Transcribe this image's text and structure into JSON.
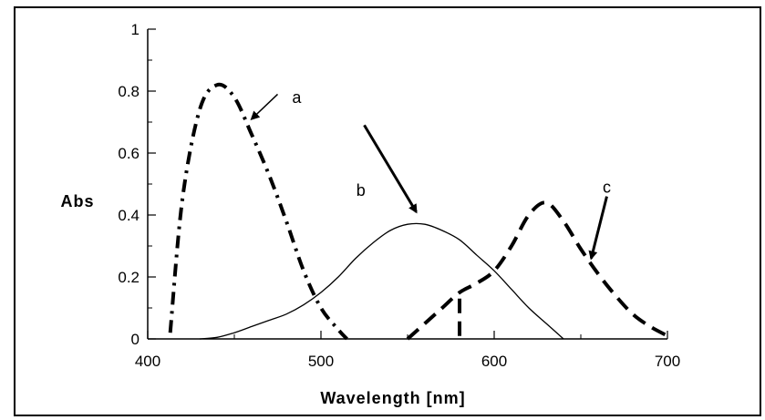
{
  "chart_data": {
    "type": "line",
    "xlabel": "Wavelength [nm]",
    "ylabel": "Abs",
    "xlim": [
      400,
      700
    ],
    "ylim": [
      0,
      1
    ],
    "x_ticks": [
      400,
      500,
      600,
      700
    ],
    "x_tick_labels": [
      "400",
      "500",
      "600",
      "700"
    ],
    "y_ticks": [
      0,
      0.2,
      0.4,
      0.6,
      0.8,
      1
    ],
    "y_tick_labels": [
      "0",
      "0.2",
      "0.4",
      "0.6",
      "0.8",
      "1"
    ],
    "grid": false,
    "series": [
      {
        "name": "a",
        "style": "dash-dot",
        "color": "#000000",
        "x": [
          413,
          420,
          430,
          440,
          450,
          460,
          470,
          480,
          490,
          500,
          510,
          515
        ],
        "y": [
          0.02,
          0.45,
          0.74,
          0.82,
          0.78,
          0.66,
          0.53,
          0.38,
          0.22,
          0.1,
          0.03,
          0.0
        ]
      },
      {
        "name": "b",
        "style": "solid",
        "color": "#000000",
        "x": [
          430,
          440,
          450,
          460,
          470,
          480,
          490,
          500,
          510,
          520,
          530,
          540,
          550,
          560,
          570,
          580,
          590,
          600,
          610,
          620,
          630,
          640
        ],
        "y": [
          0.0,
          0.005,
          0.02,
          0.04,
          0.06,
          0.08,
          0.11,
          0.15,
          0.2,
          0.26,
          0.31,
          0.35,
          0.37,
          0.37,
          0.35,
          0.32,
          0.27,
          0.22,
          0.16,
          0.1,
          0.05,
          0.0
        ]
      },
      {
        "name": "c",
        "style": "dashed",
        "color": "#000000",
        "x": [
          550,
          560,
          570,
          580,
          590,
          600,
          610,
          620,
          630,
          640,
          650,
          660,
          670,
          680,
          690,
          700
        ],
        "y": [
          0.0,
          0.05,
          0.1,
          0.15,
          0.18,
          0.22,
          0.3,
          0.4,
          0.44,
          0.38,
          0.29,
          0.21,
          0.14,
          0.08,
          0.04,
          0.01
        ]
      }
    ],
    "extra_marks": [
      {
        "name": "c-tail",
        "style": "dashed",
        "x": [
          580,
          580
        ],
        "y": [
          0.13,
          0.0
        ]
      }
    ],
    "annotations": [
      {
        "text": "a",
        "x": 486,
        "y": 0.78,
        "arrow_from": [
          475,
          0.79
        ],
        "arrow_to": [
          460,
          0.71
        ]
      },
      {
        "text": "b",
        "x": 523,
        "y": 0.48,
        "arrow_from": [
          525,
          0.69
        ],
        "arrow_to": [
          555,
          0.41
        ]
      },
      {
        "text": "c",
        "x": 665,
        "y": 0.49,
        "arrow_from": [
          665,
          0.46
        ],
        "arrow_to": [
          656,
          0.26
        ]
      }
    ]
  }
}
